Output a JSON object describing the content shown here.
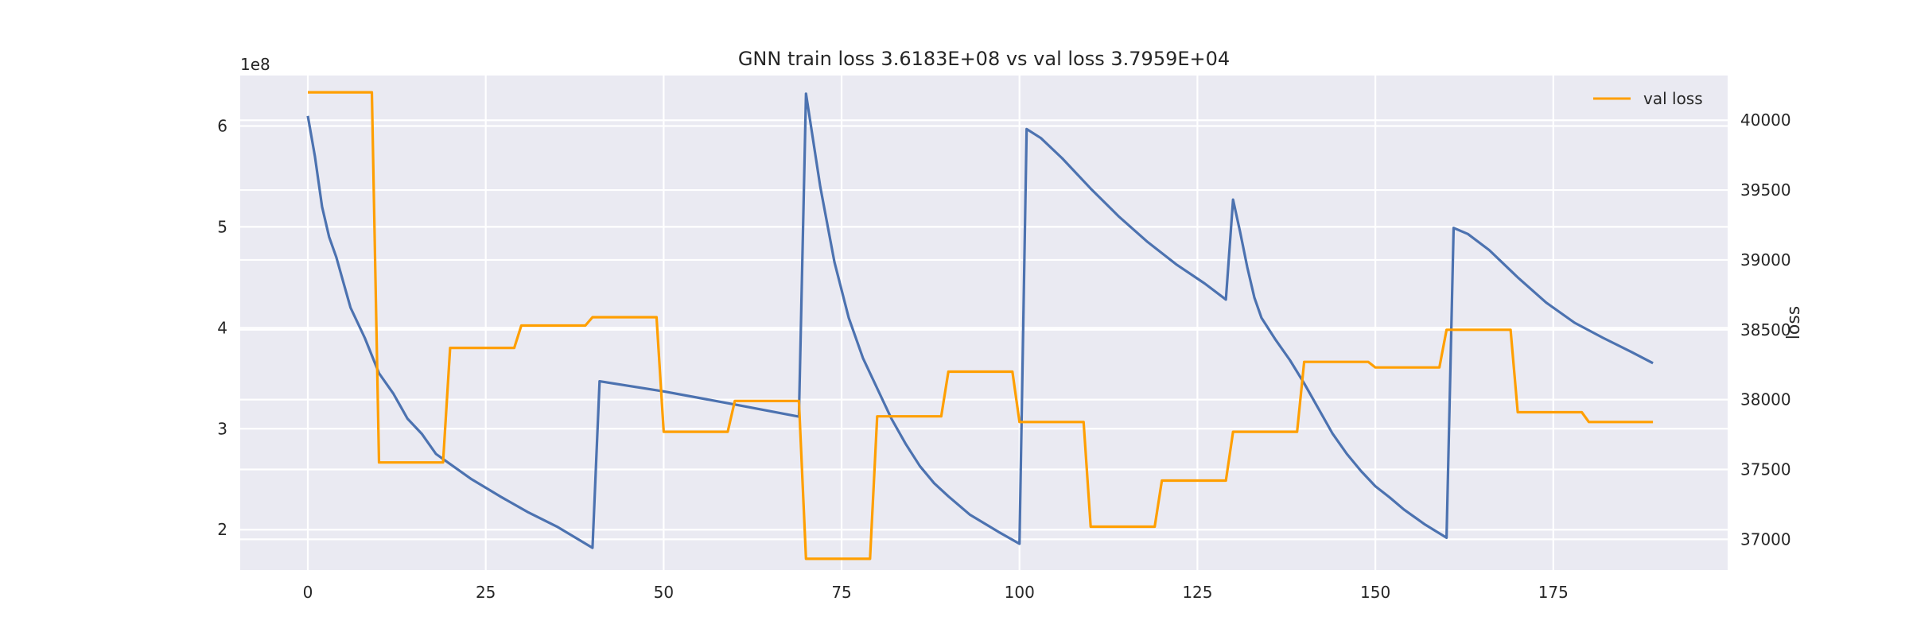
{
  "chart_data": {
    "type": "line",
    "title": "GNN train loss 3.6183E+08 vs val loss 3.7959E+04",
    "xlim": [
      -9.5,
      199.5
    ],
    "x_ticks": [
      0,
      25,
      50,
      75,
      100,
      125,
      150,
      175
    ],
    "left_axis": {
      "ylim": [
        1.6,
        6.5
      ],
      "ticks": [
        2,
        3,
        4,
        5,
        6
      ],
      "offset_text": "1e8",
      "ylabel": ""
    },
    "right_axis": {
      "ylim": [
        36780,
        40320
      ],
      "ticks": [
        37000,
        37500,
        38000,
        38500,
        39000,
        39500,
        40000
      ],
      "ylabel": "loss"
    },
    "grid": true,
    "legend": {
      "position": "top-right"
    },
    "series": [
      {
        "axis": "left",
        "color": "#4c72b0",
        "points": [
          [
            0,
            6.1
          ],
          [
            1,
            5.7
          ],
          [
            2,
            5.2
          ],
          [
            3,
            4.9
          ],
          [
            4,
            4.7
          ],
          [
            5,
            4.45
          ],
          [
            6,
            4.2
          ],
          [
            8,
            3.9
          ],
          [
            10,
            3.55
          ],
          [
            12,
            3.35
          ],
          [
            14,
            3.1
          ],
          [
            16,
            2.95
          ],
          [
            18,
            2.75
          ],
          [
            20,
            2.65
          ],
          [
            23,
            2.5
          ],
          [
            27,
            2.33
          ],
          [
            31,
            2.17
          ],
          [
            35,
            2.03
          ],
          [
            40,
            1.82
          ],
          [
            41,
            3.47
          ],
          [
            50,
            3.37
          ],
          [
            60,
            3.24
          ],
          [
            69,
            3.12
          ],
          [
            70,
            6.32
          ],
          [
            72,
            5.4
          ],
          [
            74,
            4.65
          ],
          [
            76,
            4.1
          ],
          [
            78,
            3.7
          ],
          [
            80,
            3.4
          ],
          [
            82,
            3.1
          ],
          [
            84,
            2.85
          ],
          [
            86,
            2.63
          ],
          [
            88,
            2.46
          ],
          [
            90,
            2.33
          ],
          [
            93,
            2.15
          ],
          [
            97,
            1.98
          ],
          [
            100,
            1.86
          ],
          [
            101,
            5.97
          ],
          [
            103,
            5.88
          ],
          [
            106,
            5.68
          ],
          [
            110,
            5.38
          ],
          [
            114,
            5.1
          ],
          [
            118,
            4.85
          ],
          [
            122,
            4.63
          ],
          [
            126,
            4.44
          ],
          [
            129,
            4.28
          ],
          [
            130,
            5.27
          ],
          [
            131,
            4.95
          ],
          [
            132,
            4.6
          ],
          [
            133,
            4.3
          ],
          [
            134,
            4.1
          ],
          [
            136,
            3.88
          ],
          [
            138,
            3.68
          ],
          [
            140,
            3.45
          ],
          [
            142,
            3.2
          ],
          [
            144,
            2.95
          ],
          [
            146,
            2.75
          ],
          [
            148,
            2.58
          ],
          [
            150,
            2.43
          ],
          [
            152,
            2.32
          ],
          [
            154,
            2.2
          ],
          [
            157,
            2.05
          ],
          [
            160,
            1.92
          ],
          [
            161,
            4.99
          ],
          [
            163,
            4.93
          ],
          [
            166,
            4.77
          ],
          [
            170,
            4.5
          ],
          [
            174,
            4.25
          ],
          [
            178,
            4.05
          ],
          [
            182,
            3.9
          ],
          [
            186,
            3.76
          ],
          [
            189,
            3.65
          ]
        ]
      },
      {
        "axis": "right",
        "name": "val loss",
        "color": "#ff9f00",
        "points": [
          [
            0,
            40200
          ],
          [
            9,
            40200
          ],
          [
            10,
            37550
          ],
          [
            19,
            37550
          ],
          [
            20,
            38370
          ],
          [
            29,
            38370
          ],
          [
            30,
            38530
          ],
          [
            39,
            38530
          ],
          [
            40,
            38590
          ],
          [
            49,
            38590
          ],
          [
            50,
            37770
          ],
          [
            59,
            37770
          ],
          [
            60,
            37990
          ],
          [
            69,
            37990
          ],
          [
            70,
            36860
          ],
          [
            79,
            36860
          ],
          [
            80,
            37880
          ],
          [
            89,
            37880
          ],
          [
            90,
            38200
          ],
          [
            99,
            38200
          ],
          [
            100,
            37840
          ],
          [
            109,
            37840
          ],
          [
            110,
            37090
          ],
          [
            119,
            37090
          ],
          [
            120,
            37420
          ],
          [
            129,
            37420
          ],
          [
            130,
            37770
          ],
          [
            139,
            37770
          ],
          [
            140,
            38270
          ],
          [
            149,
            38270
          ],
          [
            150,
            38230
          ],
          [
            159,
            38230
          ],
          [
            160,
            38500
          ],
          [
            169,
            38500
          ],
          [
            170,
            37910
          ],
          [
            179,
            37910
          ],
          [
            180,
            37840
          ],
          [
            189,
            37840
          ]
        ]
      }
    ]
  }
}
